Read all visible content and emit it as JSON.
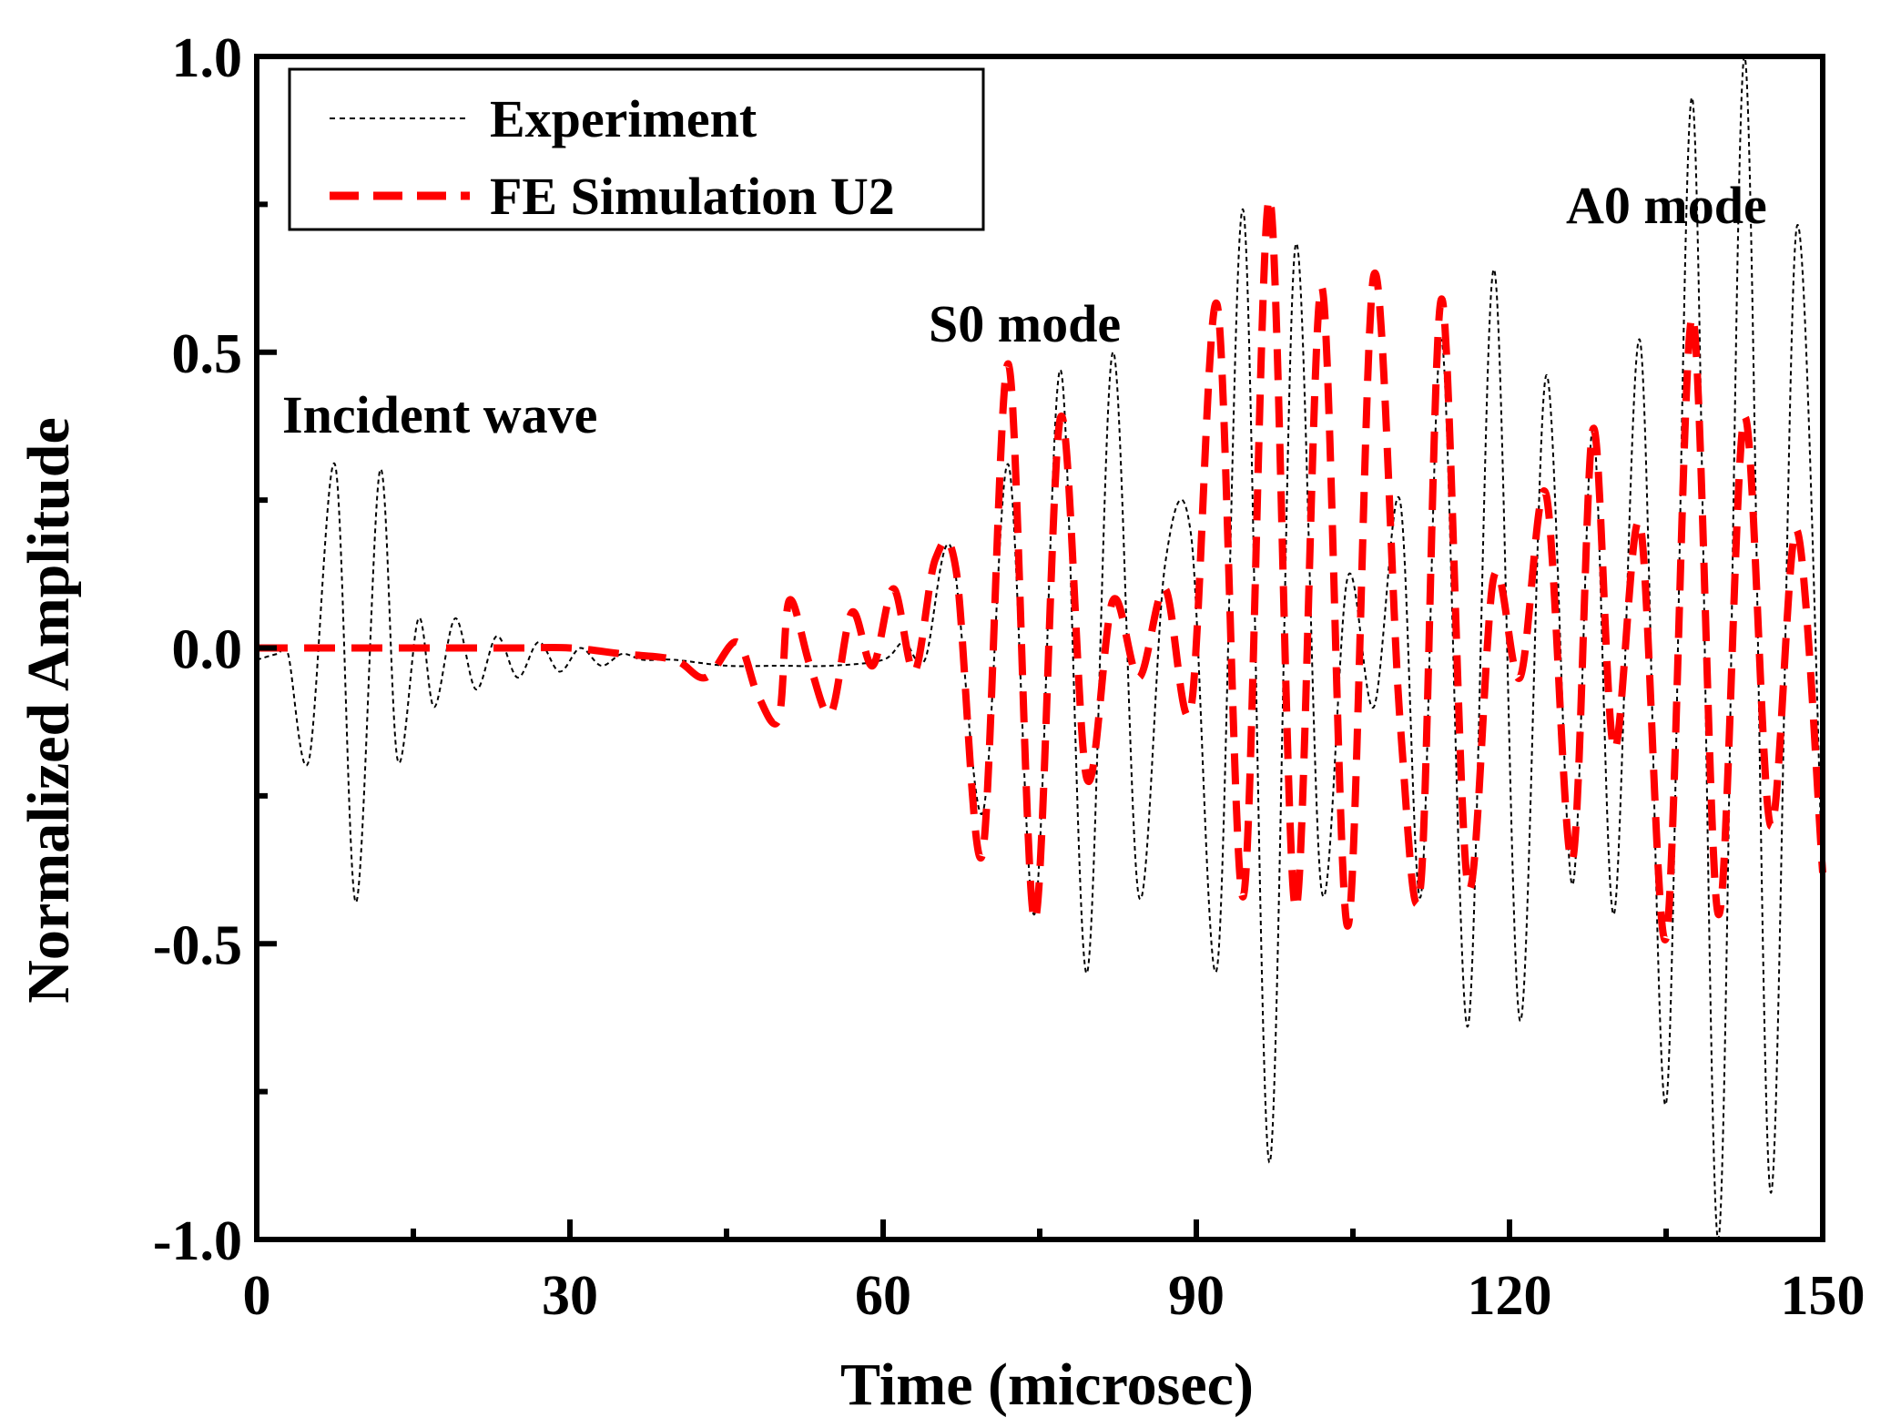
{
  "chart_data": {
    "type": "line",
    "title": "",
    "xlabel": "Time (microsec)",
    "ylabel": "Normalized Amplitude",
    "xlim": [
      0,
      150
    ],
    "ylim": [
      -1.0,
      1.0
    ],
    "x_ticks": [
      0,
      30,
      60,
      90,
      120,
      150
    ],
    "x_tick_labels": [
      "0",
      "30",
      "60",
      "90",
      "120",
      "150"
    ],
    "y_ticks": [
      -1.0,
      -0.5,
      0.0,
      0.5,
      1.0
    ],
    "y_tick_labels": [
      "-1.0",
      "-0.5",
      "0.0",
      "0.5",
      "1.0"
    ],
    "legend_position": "top-left",
    "grid": false,
    "series": [
      {
        "name": "Experiment",
        "color": "#000000",
        "style": "thin-dotted",
        "x": [
          0,
          2,
          3,
          5,
          7.5,
          9.5,
          11.8,
          13.5,
          15.5,
          17,
          19,
          21,
          23,
          25,
          27,
          29,
          31,
          33,
          35,
          37,
          40,
          45,
          50,
          55,
          60,
          62,
          64,
          66.5,
          69.5,
          72,
          74.5,
          77,
          79.5,
          82,
          84.5,
          87,
          89.5,
          92,
          94.5,
          97,
          99.5,
          102,
          104.5,
          107,
          109.5,
          111.5,
          113.5,
          116,
          118.5,
          121,
          123.5,
          126,
          128,
          130,
          132.5,
          135,
          137.5,
          140,
          142.5,
          145,
          147.5,
          150
        ],
        "y": [
          -0.02,
          -0.01,
          -0.01,
          -0.19,
          0.31,
          -0.43,
          0.3,
          -0.19,
          0.05,
          -0.1,
          0.05,
          -0.07,
          0.02,
          -0.05,
          0.01,
          -0.04,
          0.0,
          -0.03,
          -0.01,
          -0.02,
          -0.02,
          -0.03,
          -0.03,
          -0.03,
          -0.02,
          0.01,
          -0.02,
          0.17,
          -0.28,
          0.31,
          -0.45,
          0.47,
          -0.55,
          0.5,
          -0.42,
          0.14,
          0.19,
          -0.54,
          0.74,
          -0.87,
          0.68,
          -0.41,
          0.12,
          -0.1,
          0.25,
          -0.42,
          0.52,
          -0.64,
          0.64,
          -0.63,
          0.46,
          -0.4,
          0.37,
          -0.45,
          0.52,
          -0.77,
          0.93,
          -1.0,
          1.0,
          -0.92,
          0.71,
          -0.4
        ]
      },
      {
        "name": "FE Simulation U2",
        "color": "#ff0000",
        "style": "thick-dashed",
        "x": [
          0,
          5,
          10,
          15,
          20,
          25,
          30,
          35,
          40,
          43,
          46,
          48,
          50,
          51,
          53,
          55,
          57,
          59,
          61,
          63,
          65,
          67,
          69.5,
          72,
          74.5,
          77,
          79.5,
          82,
          84.5,
          87,
          89.5,
          92,
          94.5,
          97,
          99.5,
          102,
          104.5,
          107,
          109.5,
          111.5,
          113.5,
          116,
          118.5,
          121,
          123.5,
          126,
          128,
          130,
          132.5,
          135,
          137.5,
          140,
          142.5,
          145,
          147.5,
          150
        ],
        "y": [
          0.0,
          0.0,
          0.0,
          0.0,
          0.0,
          0.0,
          0.0,
          -0.01,
          -0.02,
          -0.05,
          0.01,
          -0.08,
          -0.12,
          0.08,
          -0.03,
          -0.11,
          0.06,
          -0.03,
          0.1,
          -0.04,
          0.15,
          0.13,
          -0.35,
          0.48,
          -0.46,
          0.39,
          -0.22,
          0.08,
          -0.05,
          0.1,
          -0.1,
          0.58,
          -0.42,
          0.76,
          -0.44,
          0.61,
          -0.47,
          0.63,
          -0.12,
          -0.4,
          0.59,
          -0.4,
          0.12,
          -0.05,
          0.26,
          -0.36,
          0.37,
          -0.17,
          0.21,
          -0.49,
          0.56,
          -0.45,
          0.39,
          -0.3,
          0.2,
          -0.38
        ]
      }
    ],
    "annotations": [
      "Incident wave",
      "S0 mode",
      "A0 mode"
    ]
  }
}
